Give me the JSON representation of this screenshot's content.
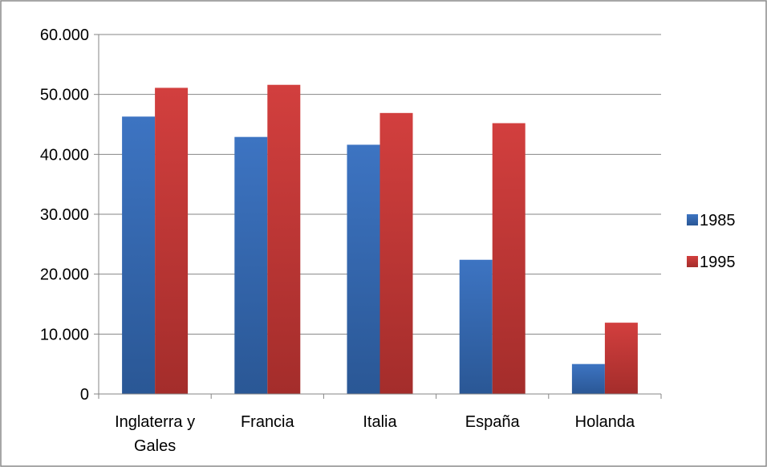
{
  "chart_data": {
    "type": "bar",
    "categories": [
      "Inglaterra y Gales",
      "Francia",
      "Italia",
      "España",
      "Holanda"
    ],
    "category_lines": [
      [
        "Inglaterra y",
        "Gales"
      ],
      [
        "Francia"
      ],
      [
        "Italia"
      ],
      [
        "España"
      ],
      [
        "Holanda"
      ]
    ],
    "series": [
      {
        "name": "1985",
        "values": [
          46300,
          42900,
          41600,
          22400,
          5000
        ],
        "color": "#3d74c2",
        "color_dark": "#2a5795"
      },
      {
        "name": "1995",
        "values": [
          51100,
          51600,
          46900,
          45200,
          11900
        ],
        "color": "#d23f3e",
        "color_dark": "#a42d2b"
      }
    ],
    "ylim": [
      0,
      60000
    ],
    "yticks": [
      0,
      10000,
      20000,
      30000,
      40000,
      50000,
      60000
    ],
    "ytick_labels": [
      "0",
      "10.000",
      "20.000",
      "30.000",
      "40.000",
      "50.000",
      "60.000"
    ],
    "grid": true,
    "legend_position": "right",
    "title": "",
    "xlabel": "",
    "ylabel": ""
  }
}
